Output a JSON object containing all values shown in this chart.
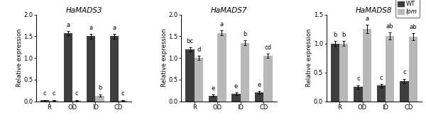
{
  "panels": [
    {
      "title": "HaMADS3",
      "ylim": [
        0,
        2.0
      ],
      "yticks": [
        0.0,
        0.5,
        1.0,
        1.5,
        2.0
      ],
      "ylabel": "Relative expression",
      "categories": [
        "R",
        "OD",
        "ID",
        "CD"
      ],
      "wt_values": [
        0.02,
        1.57,
        1.5,
        1.5
      ],
      "lpm_values": [
        0.02,
        0.02,
        0.13,
        0.02
      ],
      "wt_errors": [
        0.01,
        0.05,
        0.05,
        0.05
      ],
      "lpm_errors": [
        0.01,
        0.01,
        0.03,
        0.01
      ],
      "wt_labels": [
        "c",
        "a",
        "a",
        "a"
      ],
      "lpm_labels": [
        "c",
        "c",
        "b",
        "c"
      ]
    },
    {
      "title": "HaMADS7",
      "ylim": [
        0,
        2.0
      ],
      "yticks": [
        0.0,
        0.5,
        1.0,
        1.5,
        2.0
      ],
      "ylabel": "Relative expression",
      "categories": [
        "R",
        "OD",
        "ID",
        "CD"
      ],
      "wt_values": [
        1.2,
        0.13,
        0.17,
        0.2
      ],
      "lpm_values": [
        1.0,
        1.58,
        1.35,
        1.05
      ],
      "wt_errors": [
        0.05,
        0.02,
        0.03,
        0.03
      ],
      "lpm_errors": [
        0.05,
        0.06,
        0.06,
        0.05
      ],
      "wt_labels": [
        "bc",
        "e",
        "e",
        "e"
      ],
      "lpm_labels": [
        "d",
        "a",
        "b",
        "cd"
      ]
    },
    {
      "title": "HaMADS8",
      "ylim": [
        0,
        1.5
      ],
      "yticks": [
        0.0,
        0.5,
        1.0,
        1.5
      ],
      "ylabel": "Relative expression",
      "categories": [
        "R",
        "OD",
        "ID",
        "CD"
      ],
      "wt_values": [
        1.0,
        0.25,
        0.27,
        0.35
      ],
      "lpm_values": [
        1.0,
        1.25,
        1.13,
        1.12
      ],
      "wt_errors": [
        0.04,
        0.03,
        0.03,
        0.04
      ],
      "lpm_errors": [
        0.04,
        0.07,
        0.06,
        0.06
      ],
      "wt_labels": [
        "b",
        "c",
        "c",
        "c"
      ],
      "lpm_labels": [
        "b",
        "a",
        "ab",
        "ab"
      ]
    }
  ],
  "wt_color": "#3d3d3d",
  "lpm_color": "#b8b8b8",
  "bar_width": 0.38,
  "legend_labels": [
    "WT",
    "lpm"
  ],
  "label_fontsize": 6.0,
  "tick_fontsize": 6.0,
  "title_fontsize": 7.5,
  "annot_fontsize": 6.0
}
